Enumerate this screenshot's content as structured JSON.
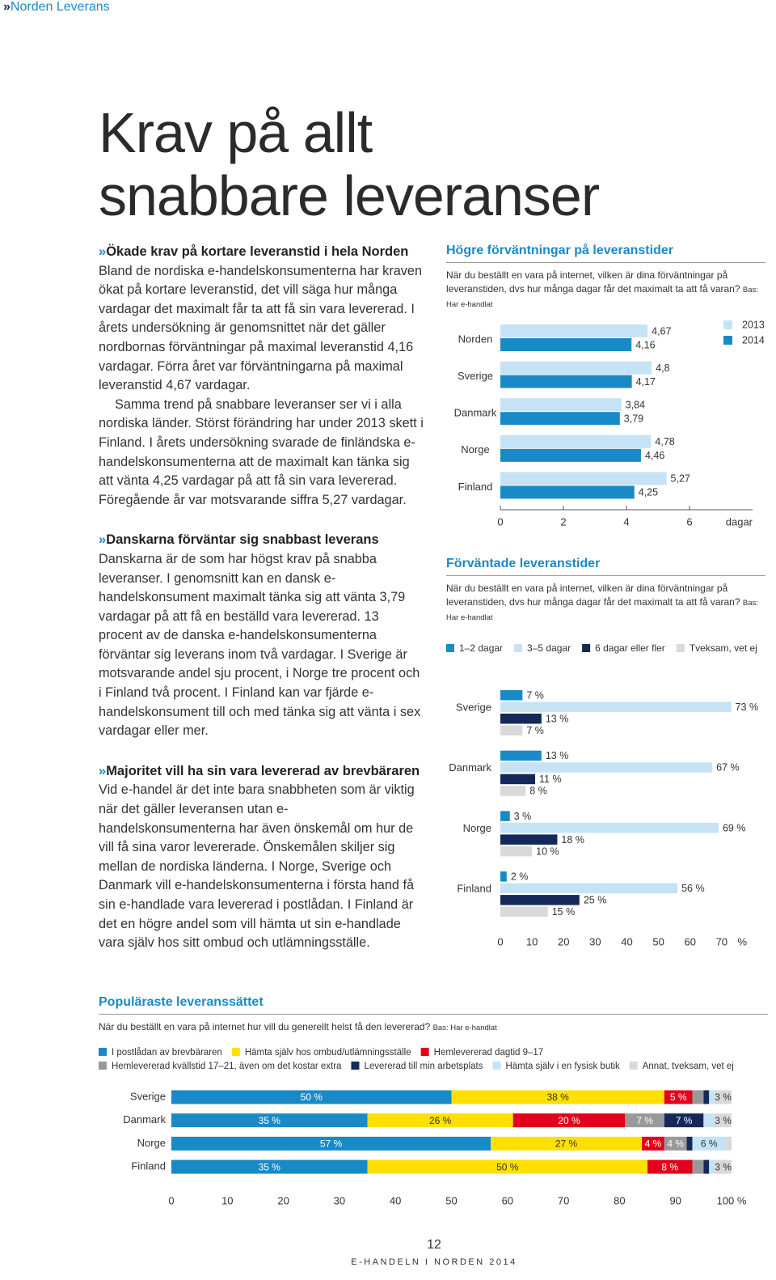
{
  "header": {
    "marker": "»",
    "section": "Norden Leverans"
  },
  "title": "Krav på allt snabbare leveranser",
  "sections": [
    {
      "heading": "Ökade krav på kortare leveranstid i hela Norden",
      "paragraphs": [
        "Bland de nordiska e-handelskonsumenterna har kraven ökat på kortare leveranstid, det vill säga hur många vardagar det maximalt får ta att få sin vara levererad. I årets undersökning är genomsnittet när det gäller nordbornas förväntningar på maximal leveranstid 4,16 vardagar. Förra året var förväntningarna på maximal leveranstid 4,67 vardagar.",
        "Samma trend på snabbare leveranser ser vi i alla nordiska länder. Störst förändring har under 2013 skett i Finland. I årets undersökning svarade de finländska e-handelskonsumenterna att de maximalt kan tänka sig att vänta 4,25 vardagar på att få sin vara levererad. Föregående år var motsvarande siffra 5,27 vardagar."
      ]
    },
    {
      "heading": "Danskarna förväntar sig snabbast leverans",
      "paragraphs": [
        "Danskarna är de som har högst krav på snabba leveranser. I genomsnitt kan en dansk e-handelskonsument maximalt tänka sig att vänta 3,79 vardagar på att få en beställd vara levererad. 13 procent av de danska e-handelskonsumenterna förväntar sig leverans inom två vardagar. I Sverige är motsvarande andel sju procent, i Norge tre procent och i Finland två procent. I Finland kan var fjärde e-handelskonsument till och med tänka sig att vänta i sex vardagar eller mer."
      ]
    },
    {
      "heading": "Majoritet vill ha sin vara levererad av brevbäraren",
      "paragraphs": [
        "Vid e-handel är det inte bara snabbheten som är viktig när det gäller leveransen utan e-handelskonsumenterna har även önskemål om hur de vill få sina varor levererade. Önskemålen skiljer sig mellan de nordiska länderna. I Norge, Sverige och Danmark vill e-handelskonsumenterna i första hand få sin e-handlade vara levererad i postlådan. I Finland är det en högre andel som vill hämta ut sin e-handlade vara själv hos sitt ombud och utlämningsställe."
      ]
    }
  ],
  "chart_data": [
    {
      "type": "bar",
      "orientation": "horizontal",
      "title": "Högre förväntningar på leveranstider",
      "subtitle": "När du beställt en vara på internet, vilken är dina förväntningar på leveranstiden, dvs hur många dagar får det maximalt ta att få varan?",
      "note": "Bas: Har e-handlat",
      "categories": [
        "Norden",
        "Sverige",
        "Danmark",
        "Norge",
        "Finland"
      ],
      "series": [
        {
          "name": "2013",
          "color": "#c5e3f5",
          "values": [
            4.67,
            4.8,
            3.84,
            4.78,
            5.27
          ],
          "value_labels": [
            "4,67",
            "4,8",
            "3,84",
            "4,78",
            "5,27"
          ]
        },
        {
          "name": "2014",
          "color": "#1a8ac6",
          "values": [
            4.16,
            4.17,
            3.79,
            4.46,
            4.25
          ],
          "value_labels": [
            "4,16",
            "4,17",
            "3,79",
            "4,46",
            "4,25"
          ]
        }
      ],
      "xlim": [
        0,
        8
      ],
      "xticks": [
        0,
        2,
        4,
        6
      ],
      "xlabel": "dagar",
      "legend": "top-right"
    },
    {
      "type": "bar",
      "orientation": "horizontal",
      "title": "Förväntade leveranstider",
      "subtitle": "När du beställt en vara på internet, vilken är dina förväntningar på leveranstiden, dvs hur många dagar får det maximalt ta att få varan?",
      "note": "Bas: Har e-handlat",
      "categories": [
        "Sverige",
        "Danmark",
        "Norge",
        "Finland"
      ],
      "series": [
        {
          "name": "1–2 dagar",
          "color": "#1a8ac6",
          "values": [
            7,
            13,
            3,
            2
          ],
          "value_labels": [
            "7 %",
            "13 %",
            "3 %",
            "2 %"
          ]
        },
        {
          "name": "3–5 dagar",
          "color": "#c5e3f5",
          "values": [
            73,
            67,
            69,
            56
          ],
          "value_labels": [
            "73 %",
            "67 %",
            "69 %",
            "56 %"
          ]
        },
        {
          "name": "6 dagar eller fler",
          "color": "#14285a",
          "values": [
            13,
            11,
            18,
            25
          ],
          "value_labels": [
            "13 %",
            "11 %",
            "18 %",
            "25 %"
          ]
        },
        {
          "name": "Tveksam, vet ej",
          "color": "#d9d9d9",
          "values": [
            7,
            8,
            10,
            15
          ],
          "value_labels": [
            "7 %",
            "8 %",
            "10 %",
            "15 %"
          ]
        }
      ],
      "xlim": [
        0,
        80
      ],
      "xticks": [
        0,
        10,
        20,
        30,
        40,
        50,
        60,
        70
      ],
      "xlabel": "%",
      "legend": "top"
    },
    {
      "type": "bar",
      "orientation": "horizontal",
      "stacked": true,
      "title": "Populäraste leveranssättet",
      "subtitle": "När du beställt en vara på internet hur vill du generellt helst få den levererad?",
      "note": "Bas: Har e-handlat",
      "categories": [
        "Sverige",
        "Danmark",
        "Norge",
        "Finland"
      ],
      "series": [
        {
          "name": "I postlådan av brevbäraren",
          "color": "#1a8ac6",
          "values": [
            50,
            35,
            57,
            35
          ],
          "value_labels": [
            "50 %",
            "35 %",
            "57 %",
            "35 %"
          ]
        },
        {
          "name": "Hämta själv hos ombud/utlämningsställe",
          "color": "#ffe000",
          "values": [
            38,
            26,
            27,
            50
          ],
          "value_labels": [
            "38 %",
            "26 %",
            "27 %",
            "50 %"
          ]
        },
        {
          "name": "Hemlevererad dagtid 9–17",
          "color": "#e3001b",
          "values": [
            5,
            20,
            4,
            8
          ],
          "value_labels": [
            "5 %",
            "20 %",
            "4 %",
            "8 %"
          ]
        },
        {
          "name": "Hemlevererad kvällstid 17–21, även om det kostar extra",
          "color": "#999999",
          "values": [
            2,
            7,
            4,
            2
          ],
          "value_labels": [
            null,
            "7 %",
            "4 %",
            null
          ]
        },
        {
          "name": "Levererad till min arbetsplats",
          "color": "#14285a",
          "values": [
            1,
            7,
            1,
            1
          ],
          "value_labels": [
            null,
            "7 %",
            null,
            null
          ]
        },
        {
          "name": "Hämta själv i en fysisk butik",
          "color": "#c5e3f5",
          "values": [
            1,
            2,
            6,
            1
          ],
          "value_labels": [
            null,
            null,
            "6 %",
            null
          ]
        },
        {
          "name": "Annat, tveksam, vet ej",
          "color": "#d9d9d9",
          "values": [
            3,
            3,
            1,
            3
          ],
          "value_labels": [
            "3 %",
            "3 %",
            null,
            "3 %"
          ]
        }
      ],
      "xlim": [
        0,
        100
      ],
      "xticks": [
        0,
        10,
        20,
        30,
        40,
        50,
        60,
        70,
        80,
        90,
        {
          "value": 100,
          "label": "100 %"
        }
      ],
      "legend": "top"
    }
  ],
  "footer": {
    "page": "12",
    "publication": "E-HANDELN I NORDEN 2014"
  }
}
